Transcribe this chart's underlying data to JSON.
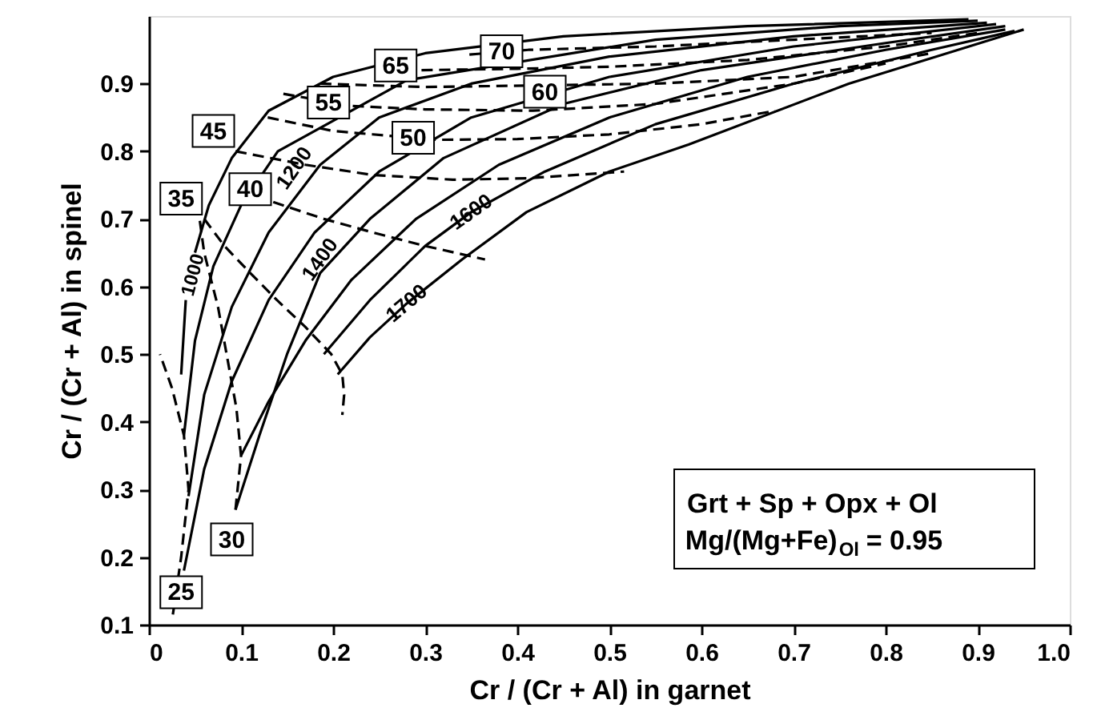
{
  "chart_data": {
    "type": "line",
    "xlabel": "Cr / (Cr + Al) in garnet",
    "ylabel": "Cr / (Cr + Al) in spinel",
    "xlim": [
      0,
      1.0
    ],
    "ylim": [
      0.1,
      1.0
    ],
    "xticks": [
      {
        "value": 0,
        "label": "0"
      },
      0.1,
      0.2,
      0.3,
      0.4,
      0.5,
      0.6,
      0.7,
      0.8,
      0.9,
      {
        "value": 1.0,
        "label": "1.0"
      }
    ],
    "yticks": [
      0.1,
      0.2,
      0.3,
      0.4,
      0.5,
      0.6,
      0.7,
      0.8,
      0.9
    ],
    "grid": false,
    "series": [
      {
        "color": "#000000",
        "line_style": "solid",
        "x": [
          0.035,
          0.04,
          0.045,
          0.05,
          0.065,
          0.09,
          0.13,
          0.2,
          0.3,
          0.45,
          0.65,
          0.89
        ],
        "values": [
          0.47,
          0.58,
          null,
          0.65,
          0.72,
          0.79,
          0.86,
          0.91,
          0.945,
          0.97,
          0.985,
          0.995
        ]
      },
      {
        "color": "#000000",
        "line_style": "solid",
        "x": [
          0.038,
          0.05,
          0.07,
          0.1,
          0.14,
          0.28,
          0.55,
          0.75,
          0.9
        ],
        "values": [
          0.38,
          0.52,
          0.63,
          0.72,
          0.8,
          0.905,
          0.965,
          0.985,
          0.993
        ]
      },
      {
        "color": "#000000",
        "line_style": "solid",
        "x": [
          0.043,
          0.06,
          0.09,
          0.13,
          0.186,
          0.25,
          0.35,
          0.5,
          0.7,
          0.91
        ],
        "values": [
          0.29,
          0.44,
          0.57,
          0.68,
          0.78,
          0.85,
          0.9,
          0.94,
          0.97,
          0.99
        ]
      },
      {
        "color": "#000000",
        "line_style": "solid",
        "x": [
          0.038,
          0.06,
          0.09,
          0.13,
          0.18,
          0.25,
          0.35,
          0.5,
          0.7,
          0.92
        ],
        "values": [
          0.18,
          0.33,
          0.46,
          0.58,
          0.68,
          0.77,
          0.85,
          0.91,
          0.955,
          0.988
        ]
      },
      {
        "color": "#000000",
        "line_style": "solid",
        "x": [
          0.094,
          0.12,
          0.15,
          0.186,
          0.24,
          0.32,
          0.45,
          0.6,
          0.8,
          0.93
        ],
        "values": [
          0.27,
          0.38,
          0.5,
          0.62,
          0.7,
          0.79,
          0.87,
          0.92,
          0.96,
          0.985
        ]
      },
      {
        "color": "#000000",
        "line_style": "solid",
        "x": [
          0.1,
          0.13,
          0.17,
          0.22,
          0.29,
          0.38,
          0.5,
          0.65,
          0.8,
          0.93
        ],
        "values": [
          0.35,
          0.43,
          0.52,
          0.61,
          0.7,
          0.78,
          0.85,
          0.91,
          0.95,
          0.98
        ]
      },
      {
        "color": "#000000",
        "line_style": "solid",
        "x": [
          0.19,
          0.24,
          0.3,
          0.35,
          0.43,
          0.55,
          0.7,
          0.85,
          0.94
        ],
        "values": [
          0.5,
          0.58,
          0.66,
          0.71,
          0.77,
          0.84,
          0.9,
          0.95,
          0.978
        ]
      },
      {
        "color": "#000000",
        "line_style": "solid",
        "x": [
          0.205,
          0.24,
          0.28,
          0.34,
          0.41,
          0.5,
          0.586,
          0.76,
          0.95
        ],
        "values": [
          0.47,
          0.525,
          0.575,
          0.64,
          0.71,
          0.77,
          0.81,
          0.9,
          0.98
        ]
      },
      {
        "color": "#000000",
        "line_style": "dashed",
        "x": [
          0.026,
          0.035,
          0.043,
          0.038,
          0.025,
          0.012
        ],
        "values": [
          0.115,
          0.2,
          0.3,
          0.38,
          0.45,
          0.5
        ]
      },
      {
        "color": "#000000",
        "line_style": "dashed",
        "x": [
          0.094,
          0.1,
          0.095,
          0.087,
          0.075,
          0.06,
          0.055
        ],
        "values": [
          0.27,
          0.35,
          0.42,
          0.48,
          0.57,
          0.65,
          0.7
        ]
      },
      {
        "color": "#000000",
        "line_style": "dashed",
        "x": [
          0.06,
          0.082,
          0.11,
          0.139,
          0.17,
          0.198,
          0.21,
          0.212,
          0.21
        ],
        "values": [
          0.7,
          0.66,
          0.62,
          0.58,
          0.54,
          0.5,
          0.47,
          0.44,
          0.41
        ]
      },
      {
        "color": "#000000",
        "line_style": "dashed",
        "x": [
          0.135,
          0.19,
          0.243,
          0.3,
          0.365
        ],
        "values": [
          0.725,
          0.7,
          0.68,
          0.66,
          0.64
        ]
      },
      {
        "color": "#000000",
        "line_style": "dashed",
        "x": [
          0.094,
          0.17,
          0.243,
          0.33,
          0.41,
          0.516
        ],
        "values": [
          0.8,
          0.78,
          0.765,
          0.758,
          0.76,
          0.77
        ]
      },
      {
        "color": "#000000",
        "line_style": "dashed",
        "x": [
          0.129,
          0.2,
          0.243,
          0.313,
          0.4,
          0.5,
          0.6,
          0.68
        ],
        "values": [
          0.85,
          0.83,
          0.825,
          0.817,
          0.818,
          0.825,
          0.84,
          0.86
        ]
      },
      {
        "color": "#000000",
        "line_style": "dashed",
        "x": [
          0.146,
          0.22,
          0.3,
          0.417,
          0.55,
          0.7,
          0.8
        ],
        "values": [
          0.885,
          0.867,
          0.862,
          0.86,
          0.87,
          0.9,
          0.93
        ]
      },
      {
        "color": "#000000",
        "line_style": "dashed",
        "x": [
          0.186,
          0.3,
          0.55,
          0.7,
          0.85
        ],
        "values": [
          0.9,
          0.895,
          0.9,
          0.91,
          0.945
        ]
      },
      {
        "color": "#000000",
        "line_style": "dashed",
        "x": [
          0.296,
          0.4,
          0.5,
          0.65,
          0.8,
          0.9
        ],
        "values": [
          0.92,
          0.922,
          0.925,
          0.935,
          0.955,
          0.975
        ]
      },
      {
        "color": "#000000",
        "line_style": "dashed",
        "x": [
          0.348,
          0.412,
          0.55,
          0.7,
          0.85
        ],
        "values": [
          0.943,
          0.95,
          0.955,
          0.965,
          0.975
        ]
      }
    ],
    "annotations": [
      {
        "text": "25",
        "x": 0.035,
        "y": 0.148
      },
      {
        "text": "30",
        "x": 0.09,
        "y": 0.226
      },
      {
        "text": "35",
        "x": 0.035,
        "y": 0.73
      },
      {
        "text": "40",
        "x": 0.11,
        "y": 0.744
      },
      {
        "text": "45",
        "x": 0.07,
        "y": 0.83
      },
      {
        "text": "50",
        "x": 0.287,
        "y": 0.82
      },
      {
        "text": "55",
        "x": 0.195,
        "y": 0.872
      },
      {
        "text": "60",
        "x": 0.43,
        "y": 0.888
      },
      {
        "text": "65",
        "x": 0.268,
        "y": 0.927
      },
      {
        "text": "70",
        "x": 0.383,
        "y": 0.948
      },
      {
        "text": "1000",
        "x": 0.04,
        "y": 0.58
      },
      {
        "text": "1200",
        "x": 0.158,
        "y": 0.775
      },
      {
        "text": "1400",
        "x": 0.186,
        "y": 0.64
      },
      {
        "text": "1600",
        "x": 0.35,
        "y": 0.71
      },
      {
        "text": "1700",
        "x": 0.28,
        "y": 0.575
      },
      "Grt + Sp + Opx + Ol",
      "Mg/(Mg+Fe)$_{Ol}$ = 0.95"
    ]
  }
}
